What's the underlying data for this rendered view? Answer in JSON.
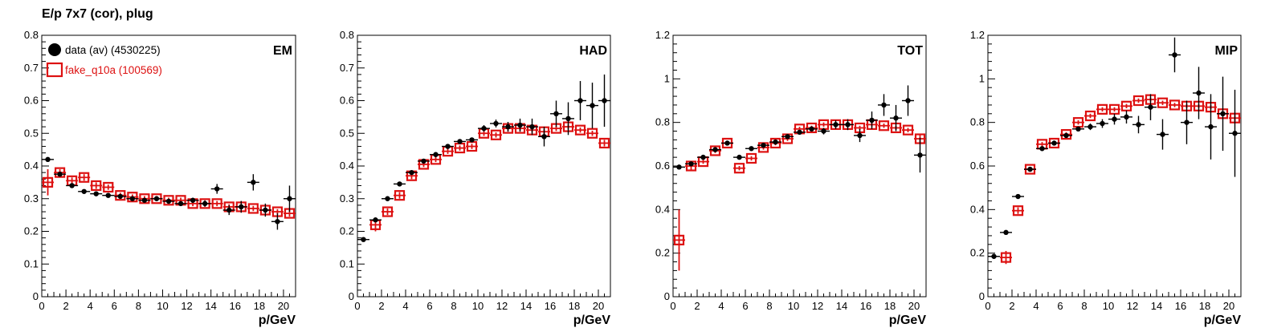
{
  "title": "E/p 7x7 (cor), plug",
  "colors": {
    "data": "#000000",
    "mc": "#dd1111",
    "frame": "#000000"
  },
  "legend": [
    {
      "label": "data (av) (4530225)",
      "marker": "filled-circle",
      "color": "#000000"
    },
    {
      "label": "fake_q10a (100569)",
      "marker": "open-square",
      "color": "#dd1111"
    }
  ],
  "chart_data": [
    {
      "type": "scatter",
      "panel_label": "EM",
      "xlabel": "p/GeV",
      "xlim": [
        0,
        21
      ],
      "ylim": [
        0,
        0.8
      ],
      "xticks": [
        0,
        2,
        4,
        6,
        8,
        10,
        12,
        14,
        16,
        18,
        20
      ],
      "yticks": [
        0,
        0.1,
        0.2,
        0.3,
        0.4,
        0.5,
        0.6,
        0.7,
        0.8
      ],
      "ytick_labels": [
        "0",
        "0.1",
        "0.2",
        "0.3",
        "0.4",
        "0.5",
        "0.6",
        "0.7",
        "0.8"
      ],
      "series": [
        {
          "name": "data (av) (4530225)",
          "x": [
            0.5,
            1.5,
            2.5,
            3.5,
            4.5,
            5.5,
            6.5,
            7.5,
            8.5,
            9.5,
            10.5,
            11.5,
            12.5,
            13.5,
            14.5,
            15.5,
            16.5,
            17.5,
            18.5,
            19.5,
            20.5
          ],
          "y": [
            0.42,
            0.375,
            0.34,
            0.322,
            0.315,
            0.31,
            0.307,
            0.3,
            0.295,
            0.3,
            0.292,
            0.285,
            0.295,
            0.285,
            0.33,
            0.265,
            0.275,
            0.35,
            0.265,
            0.23,
            0.3
          ],
          "err": [
            0.005,
            0.005,
            0.005,
            0.005,
            0.005,
            0.005,
            0.005,
            0.005,
            0.005,
            0.005,
            0.006,
            0.007,
            0.008,
            0.01,
            0.015,
            0.015,
            0.018,
            0.025,
            0.02,
            0.025,
            0.04
          ]
        },
        {
          "name": "fake_q10a (100569)",
          "x": [
            0.5,
            1.5,
            2.5,
            3.5,
            4.5,
            5.5,
            6.5,
            7.5,
            8.5,
            9.5,
            10.5,
            11.5,
            12.5,
            13.5,
            14.5,
            15.5,
            16.5,
            17.5,
            18.5,
            19.5,
            20.5
          ],
          "y": [
            0.35,
            0.38,
            0.355,
            0.365,
            0.34,
            0.335,
            0.31,
            0.305,
            0.3,
            0.3,
            0.295,
            0.295,
            0.285,
            0.285,
            0.285,
            0.275,
            0.275,
            0.27,
            0.265,
            0.26,
            0.255
          ],
          "err": [
            0.04,
            0.01,
            0.01,
            0.01,
            0.01,
            0.008,
            0.008,
            0.008,
            0.008,
            0.008,
            0.008,
            0.008,
            0.008,
            0.008,
            0.008,
            0.008,
            0.008,
            0.008,
            0.008,
            0.008,
            0.01
          ]
        }
      ]
    },
    {
      "type": "scatter",
      "panel_label": "HAD",
      "xlabel": "p/GeV",
      "xlim": [
        0,
        21
      ],
      "ylim": [
        0,
        0.8
      ],
      "xticks": [
        0,
        2,
        4,
        6,
        8,
        10,
        12,
        14,
        16,
        18,
        20
      ],
      "yticks": [
        0,
        0.1,
        0.2,
        0.3,
        0.4,
        0.5,
        0.6,
        0.7,
        0.8
      ],
      "ytick_labels": [
        "0",
        "0.1",
        "0.2",
        "0.3",
        "0.4",
        "0.5",
        "0.6",
        "0.7",
        "0.8"
      ],
      "series": [
        {
          "name": "data (av) (4530225)",
          "x": [
            0.5,
            1.5,
            2.5,
            3.5,
            4.5,
            5.5,
            6.5,
            7.5,
            8.5,
            9.5,
            10.5,
            11.5,
            12.5,
            13.5,
            14.5,
            15.5,
            16.5,
            17.5,
            18.5,
            19.5,
            20.5
          ],
          "y": [
            0.175,
            0.235,
            0.3,
            0.345,
            0.38,
            0.415,
            0.435,
            0.46,
            0.475,
            0.48,
            0.515,
            0.53,
            0.52,
            0.525,
            0.52,
            0.49,
            0.56,
            0.545,
            0.6,
            0.585,
            0.6
          ],
          "err": [
            0.005,
            0.005,
            0.005,
            0.005,
            0.005,
            0.005,
            0.005,
            0.005,
            0.005,
            0.007,
            0.01,
            0.012,
            0.015,
            0.02,
            0.025,
            0.03,
            0.04,
            0.05,
            0.06,
            0.07,
            0.08
          ]
        },
        {
          "name": "fake_q10a (100569)",
          "x": [
            1.5,
            2.5,
            3.5,
            4.5,
            5.5,
            6.5,
            7.5,
            8.5,
            9.5,
            10.5,
            11.5,
            12.5,
            13.5,
            14.5,
            15.5,
            16.5,
            17.5,
            18.5,
            19.5,
            20.5
          ],
          "y": [
            0.22,
            0.26,
            0.31,
            0.37,
            0.405,
            0.42,
            0.445,
            0.455,
            0.46,
            0.5,
            0.495,
            0.515,
            0.515,
            0.51,
            0.505,
            0.515,
            0.52,
            0.51,
            0.5,
            0.47
          ],
          "err": [
            0.02,
            0.01,
            0.01,
            0.01,
            0.008,
            0.008,
            0.008,
            0.008,
            0.008,
            0.008,
            0.008,
            0.008,
            0.008,
            0.008,
            0.008,
            0.008,
            0.008,
            0.008,
            0.008,
            0.01
          ]
        }
      ]
    },
    {
      "type": "scatter",
      "panel_label": "TOT",
      "xlabel": "p/GeV",
      "xlim": [
        0,
        21
      ],
      "ylim": [
        0,
        1.2
      ],
      "xticks": [
        0,
        2,
        4,
        6,
        8,
        10,
        12,
        14,
        16,
        18,
        20
      ],
      "yticks": [
        0,
        0.2,
        0.4,
        0.6,
        0.8,
        1,
        1.2
      ],
      "ytick_labels": [
        "0",
        "0.2",
        "0.4",
        "0.6",
        "0.8",
        "1",
        "1.2"
      ],
      "series": [
        {
          "name": "data (av) (4530225)",
          "x": [
            0.5,
            1.5,
            2.5,
            3.5,
            4.5,
            5.5,
            6.5,
            7.5,
            8.5,
            9.5,
            10.5,
            11.5,
            12.5,
            13.5,
            14.5,
            15.5,
            16.5,
            17.5,
            18.5,
            19.5,
            20.5
          ],
          "y": [
            0.595,
            0.61,
            0.64,
            0.675,
            0.705,
            0.64,
            0.68,
            0.695,
            0.71,
            0.735,
            0.755,
            0.77,
            0.76,
            0.79,
            0.79,
            0.74,
            0.81,
            0.88,
            0.82,
            0.9,
            0.65
          ],
          "err": [
            0.005,
            0.005,
            0.005,
            0.005,
            0.005,
            0.005,
            0.005,
            0.005,
            0.005,
            0.007,
            0.01,
            0.012,
            0.015,
            0.02,
            0.025,
            0.03,
            0.04,
            0.05,
            0.06,
            0.07,
            0.08
          ]
        },
        {
          "name": "fake_q10a (100569)",
          "x": [
            0.5,
            1.5,
            2.5,
            3.5,
            4.5,
            5.5,
            6.5,
            7.5,
            8.5,
            9.5,
            10.5,
            11.5,
            12.5,
            13.5,
            14.5,
            15.5,
            16.5,
            17.5,
            18.5,
            19.5,
            20.5
          ],
          "y": [
            0.26,
            0.6,
            0.62,
            0.67,
            0.705,
            0.59,
            0.635,
            0.685,
            0.705,
            0.725,
            0.77,
            0.775,
            0.79,
            0.79,
            0.79,
            0.775,
            0.79,
            0.785,
            0.775,
            0.765,
            0.725
          ],
          "err": [
            0.14,
            0.02,
            0.01,
            0.01,
            0.01,
            0.01,
            0.01,
            0.01,
            0.01,
            0.01,
            0.01,
            0.01,
            0.01,
            0.01,
            0.01,
            0.01,
            0.01,
            0.01,
            0.01,
            0.01,
            0.02
          ]
        }
      ]
    },
    {
      "type": "scatter",
      "panel_label": "MIP",
      "xlabel": "p/GeV",
      "xlim": [
        0,
        21
      ],
      "ylim": [
        0,
        1.2
      ],
      "xticks": [
        0,
        2,
        4,
        6,
        8,
        10,
        12,
        14,
        16,
        18,
        20
      ],
      "yticks": [
        0,
        0.2,
        0.4,
        0.6,
        0.8,
        1,
        1.2
      ],
      "ytick_labels": [
        "0",
        "0.2",
        "0.4",
        "0.6",
        "0.8",
        "1",
        "1.2"
      ],
      "series": [
        {
          "name": "data (av) (4530225)",
          "x": [
            0.5,
            1.5,
            2.5,
            3.5,
            4.5,
            5.5,
            6.5,
            7.5,
            8.5,
            9.5,
            10.5,
            11.5,
            12.5,
            13.5,
            14.5,
            15.5,
            16.5,
            17.5,
            18.5,
            19.5,
            20.5
          ],
          "y": [
            0.185,
            0.295,
            0.46,
            0.585,
            0.68,
            0.705,
            0.74,
            0.77,
            0.78,
            0.795,
            0.815,
            0.825,
            0.79,
            0.87,
            0.745,
            1.11,
            0.8,
            0.935,
            0.78,
            0.84,
            0.75
          ],
          "err": [
            0.005,
            0.005,
            0.005,
            0.005,
            0.005,
            0.006,
            0.008,
            0.01,
            0.015,
            0.02,
            0.025,
            0.03,
            0.04,
            0.06,
            0.07,
            0.08,
            0.1,
            0.12,
            0.15,
            0.17,
            0.2
          ]
        },
        {
          "name": "fake_q10a (100569)",
          "x": [
            1.5,
            2.5,
            3.5,
            4.5,
            5.5,
            6.5,
            7.5,
            8.5,
            9.5,
            10.5,
            11.5,
            12.5,
            13.5,
            14.5,
            15.5,
            16.5,
            17.5,
            18.5,
            19.5,
            20.5
          ],
          "y": [
            0.18,
            0.395,
            0.585,
            0.7,
            0.705,
            0.745,
            0.8,
            0.83,
            0.86,
            0.86,
            0.875,
            0.9,
            0.905,
            0.89,
            0.88,
            0.875,
            0.875,
            0.87,
            0.84,
            0.82
          ],
          "err": [
            0.03,
            0.015,
            0.01,
            0.01,
            0.01,
            0.01,
            0.01,
            0.01,
            0.01,
            0.01,
            0.01,
            0.01,
            0.01,
            0.01,
            0.01,
            0.01,
            0.01,
            0.01,
            0.01,
            0.015
          ]
        }
      ]
    }
  ]
}
